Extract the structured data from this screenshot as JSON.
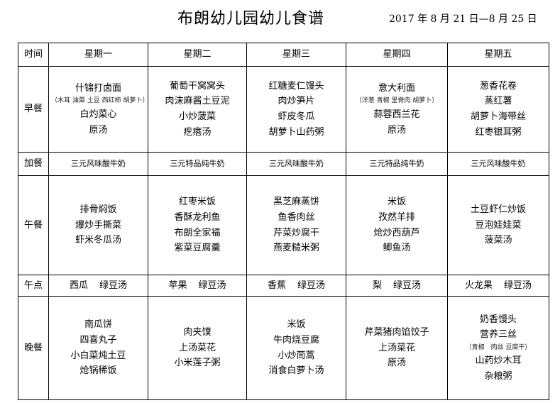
{
  "title": "布朗幼儿园幼儿食谱",
  "date_range": "2017 年 8 月 21 日—8 月 25 日",
  "header": [
    "时间",
    "星期一",
    "星期二",
    "星期三",
    "星期四",
    "星期五"
  ],
  "meals": {
    "breakfast": {
      "label": "早餐",
      "days": [
        [
          "什锦打卤面",
          "（木耳 油菜 土豆 西红柿 胡萝卜）",
          "白灼菜心",
          "原汤"
        ],
        [
          "葡萄干窝窝头",
          "肉沫麻酱土豆泥",
          "小炒菠菜",
          "疙瘩汤"
        ],
        [
          "红糖麦仁馒头",
          "肉炒笋片",
          "虾皮冬瓜",
          "胡萝卜山药粥"
        ],
        [
          "意大利面",
          "（洋葱 青椒 里脊肉 胡萝卜）",
          "蒜蓉西兰花",
          "原汤"
        ],
        [
          "葱香花卷",
          "蒸红薯",
          "胡萝卜海带丝",
          "红枣银耳粥"
        ]
      ]
    },
    "snack": {
      "label": "加餐",
      "days": [
        "三元风味酸牛奶",
        "三元特品纯牛奶",
        "三元风味酸牛奶",
        "三元特品纯牛奶",
        "三元风味酸牛奶"
      ]
    },
    "lunch": {
      "label": "午餐",
      "days": [
        [
          "排骨焖饭",
          "爆炒手撕菜",
          "虾米冬瓜汤"
        ],
        [
          "红枣米饭",
          "香酥龙利鱼",
          "布朗全家福",
          "紫菜豆腐羹"
        ],
        [
          "黑芝麻蒸饼",
          "鱼香肉丝",
          "芹菜炒腐干",
          "燕麦糙米粥"
        ],
        [
          "米饭",
          "孜然羊排",
          "炝炒西葫芦",
          "鲫鱼汤"
        ],
        [
          "土豆虾仁炒饭",
          "豆泡娃娃菜",
          "菠菜汤"
        ]
      ]
    },
    "afternoon": {
      "label": "午点",
      "days": [
        [
          "西瓜",
          "绿豆汤"
        ],
        [
          "苹果",
          "绿豆汤"
        ],
        [
          "香蕉",
          "绿豆汤"
        ],
        [
          "梨",
          "绿豆汤"
        ],
        [
          "火龙果",
          "绿豆汤"
        ]
      ]
    },
    "dinner": {
      "label": "晚餐",
      "days": [
        [
          "南瓜饼",
          "四喜丸子",
          "小白菜炖土豆",
          "炝锅稀饭"
        ],
        [
          "肉夹馍",
          "上汤菜花",
          "小米莲子粥"
        ],
        [
          "米饭",
          "牛肉烧豆腐",
          "小炒茼蒿",
          "消食白萝卜汤"
        ],
        [
          "芹菜猪肉馅饺子",
          "上汤菜花",
          "原汤"
        ],
        [
          "奶香馒头",
          "营养三丝",
          "（青椒　肉丝 豆腐干）",
          "山药炒木耳",
          "杂粮粥"
        ]
      ]
    }
  }
}
